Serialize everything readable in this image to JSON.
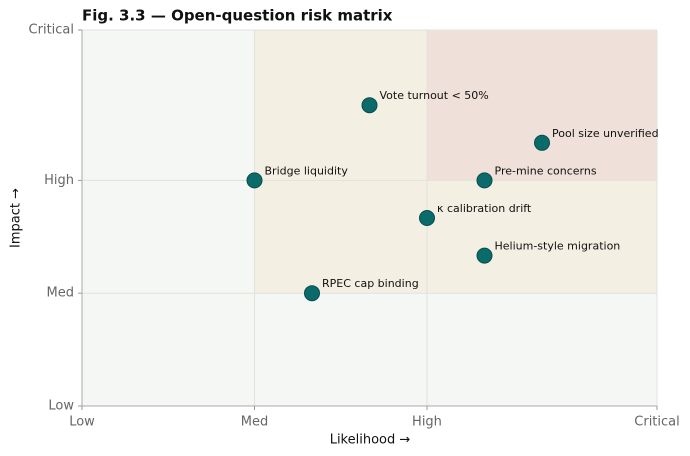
{
  "chart_data": {
    "type": "scatter",
    "title": "Fig. 3.3 — Open-question risk matrix",
    "x_label": "Likelihood →",
    "y_label": "Impact →",
    "labels": [
      "Vote turnout < 50%",
      "Pool size unverified",
      "Bridge liquidity",
      "Pre-mine concerns",
      "κ calibration drift",
      "Helium-style migration",
      "RPEC cap binding"
    ],
    "x": [
      5,
      8,
      3,
      7,
      6,
      7,
      4
    ],
    "values": [
      8,
      7,
      6,
      6,
      5,
      4,
      3
    ],
    "color": "#0b6b6b",
    "xlim": [
      0,
      10
    ],
    "ylim": [
      0,
      10
    ],
    "xticks": [
      {
        "value": 0,
        "label": "Low"
      },
      {
        "value": 3,
        "label": "Med"
      },
      {
        "value": 6,
        "label": "High"
      },
      {
        "value": 10,
        "label": "Critical"
      }
    ],
    "yticks": [
      {
        "value": 0,
        "label": "Low"
      },
      {
        "value": 3,
        "label": "Med"
      },
      {
        "value": 6,
        "label": "High"
      },
      {
        "value": 10,
        "label": "Critical"
      }
    ],
    "grid": true
  }
}
